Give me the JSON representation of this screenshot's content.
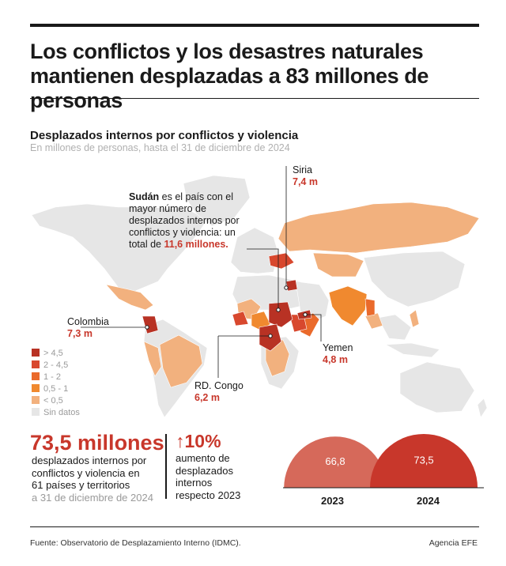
{
  "title": "Los conflictos y los desastres naturales mantienen desplazadas a 83 millones de personas",
  "map_title": "Desplazados internos por conflictos y violencia",
  "map_subtitle": "En millones de personas, hasta el 31 de diciembre de 2024",
  "callouts": {
    "sudan_name": "Sudán",
    "sudan_text": " es el país con el mayor número de desplazados internos por conflictos y violencia: un total de ",
    "sudan_value": "11,6 millones.",
    "siria_name": "Siria",
    "siria_value": "7,4 m",
    "colombia_name": "Colombia",
    "colombia_value": "7,3 m",
    "yemen_name": "Yemen",
    "yemen_value": "4,8 m",
    "congo_name": "RD. Congo",
    "congo_value": "6,2 m"
  },
  "legend": [
    {
      "label": "> 4,5",
      "color": "#b83224"
    },
    {
      "label": "2 - 4,5",
      "color": "#d8482e"
    },
    {
      "label": "1 - 2",
      "color": "#ea6a2b"
    },
    {
      "label": "0,5 - 1",
      "color": "#f0892f"
    },
    {
      "label": "< 0,5",
      "color": "#f2b17e"
    },
    {
      "label": "Sin datos",
      "color": "#e6e6e6"
    }
  ],
  "stat_main": {
    "value": "73,5 millones",
    "text_line1": "desplazados internos por",
    "text_line2": "conflictos y violencia en",
    "text_line3": "61 países y territorios",
    "date": "a 31 de diciembre de 2024"
  },
  "stat_increase": {
    "value": "↑10%",
    "line1": "aumento de",
    "line2": "desplazados",
    "line3": "internos",
    "line4": "respecto 2023"
  },
  "comparison": [
    {
      "year": "2023",
      "value": 66.8,
      "label": "66,8",
      "color": "#d6695a"
    },
    {
      "year": "2024",
      "value": 73.5,
      "label": "73,5",
      "color": "#c8372b"
    }
  ],
  "source": "Fuente: Observatorio de Desplazamiento Interno (IDMC).",
  "credit": "Agencia EFE"
}
